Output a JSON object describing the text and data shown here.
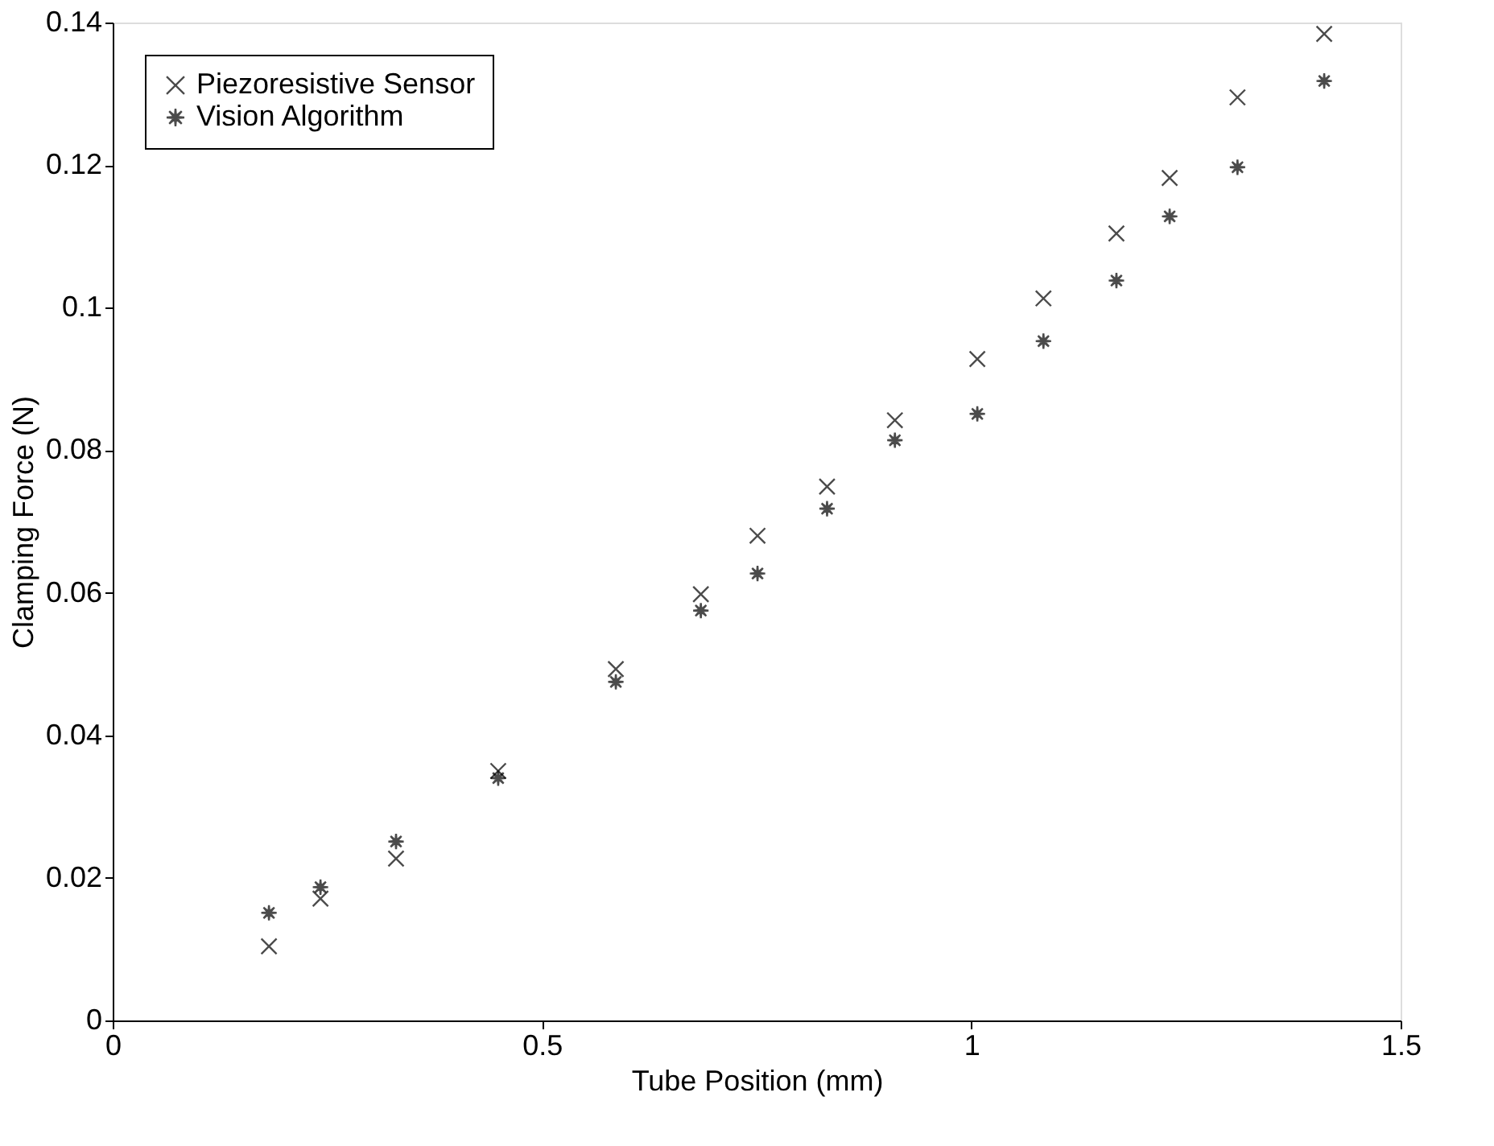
{
  "chart_data": {
    "type": "scatter",
    "xlabel": "Tube Position (mm)",
    "ylabel": "Clamping Force (N)",
    "x": [
      0.182,
      0.242,
      0.33,
      0.449,
      0.586,
      0.685,
      0.751,
      0.832,
      0.911,
      1.007,
      1.084,
      1.169,
      1.231,
      1.31,
      1.411
    ],
    "series": [
      {
        "name": "Piezoresistive Sensor",
        "color": "#000000",
        "marker": "cross",
        "values": [
          0.0104,
          0.0171,
          0.0227,
          0.035,
          0.0493,
          0.0598,
          0.068,
          0.0749,
          0.0842,
          0.0928,
          0.1013,
          0.1104,
          0.1182,
          0.1295,
          0.1384
        ]
      },
      {
        "name": "Vision Algorithm",
        "color": "#000000",
        "marker": "star",
        "values": [
          0.0151,
          0.0187,
          0.0251,
          0.034,
          0.0475,
          0.0575,
          0.0627,
          0.0718,
          0.0814,
          0.0851,
          0.0953,
          0.1038,
          0.1128,
          0.1197,
          0.1318
        ]
      }
    ],
    "xlim": [
      0,
      1.5
    ],
    "xticks": [
      0,
      0.5,
      1,
      1.5
    ],
    "ylim": [
      0,
      0.14
    ],
    "yticks": [
      0,
      0.02,
      0.04,
      0.06,
      0.08,
      0.1,
      0.12,
      0.14
    ],
    "grid": false,
    "legend": "top left"
  }
}
